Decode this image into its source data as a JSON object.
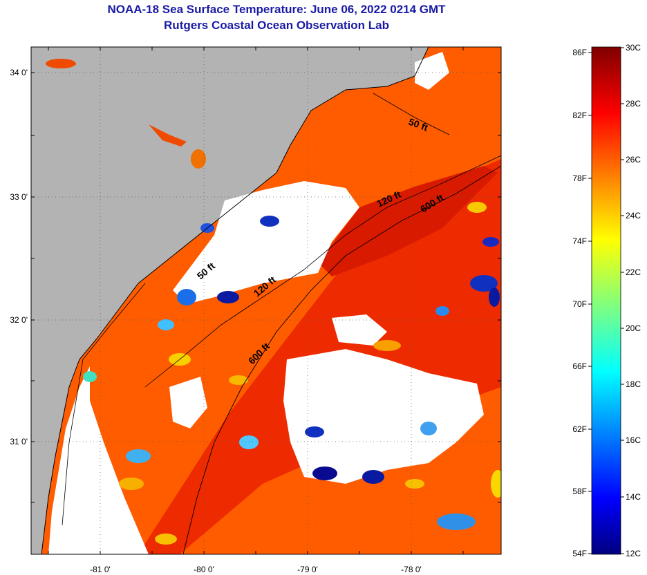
{
  "title": "NOAA-18 Sea Surface Temperature:  June 06, 2022 0214 GMT",
  "subtitle": "Rutgers Coastal Ocean Observation Lab",
  "map": {
    "lat_labels": [
      "34 0'",
      "33 0'",
      "32 0'",
      "31 0'"
    ],
    "lon_labels": [
      "-81 0'",
      "-80 0'",
      "-79 0'",
      "-78 0'"
    ],
    "isobaths": [
      "50 ft",
      "120 ft",
      "600 ft",
      "120 ft",
      "600 ft",
      "50 ft"
    ],
    "colors": {
      "land": "#b3b3b3",
      "cloud": "#ffffff",
      "warm": "#ff5a00",
      "hot": "#e01a00"
    }
  },
  "colorbar": {
    "f_labels": [
      "86F",
      "82F",
      "78F",
      "74F",
      "70F",
      "66F",
      "62F",
      "58F",
      "54F"
    ],
    "c_labels": [
      "30C",
      "28C",
      "26C",
      "24C",
      "22C",
      "20C",
      "18C",
      "16C",
      "14C",
      "12C"
    ]
  }
}
